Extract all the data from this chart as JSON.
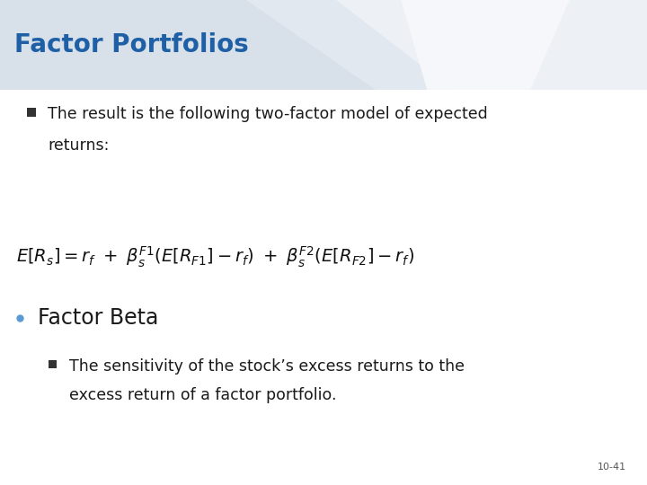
{
  "title": "Factor Portfolios",
  "title_color": "#1F5FA6",
  "title_fontsize": 20,
  "bullet1_text1": "The result is the following two-factor model of expected",
  "bullet1_text2": "returns:",
  "formula": "$E[R_s] = r_f\\ +\\ \\beta_s^{F1}(E[R_{F1}] - r_f)\\ +\\ \\beta_s^{F2}(E[R_{F2}] - r_f)$",
  "bullet2_header": "Factor Beta",
  "bullet2_text1": "The sensitivity of the stock’s excess returns to the",
  "bullet2_text2": "excess return of a factor portfolio.",
  "page_number": "10-41",
  "header_bg_color": "#d8e0ea",
  "swirl1_color": "#e2e8f0",
  "swirl2_color": "#edf1f6",
  "swirl3_color": "#f5f7fa",
  "body_bg_color": "#ffffff",
  "text_color": "#1a1a1a",
  "bullet_sq_color": "#333333",
  "bullet_dot_color": "#5b9bd5",
  "formula_fontsize": 14,
  "body_fontsize": 12.5,
  "factor_beta_fontsize": 17
}
